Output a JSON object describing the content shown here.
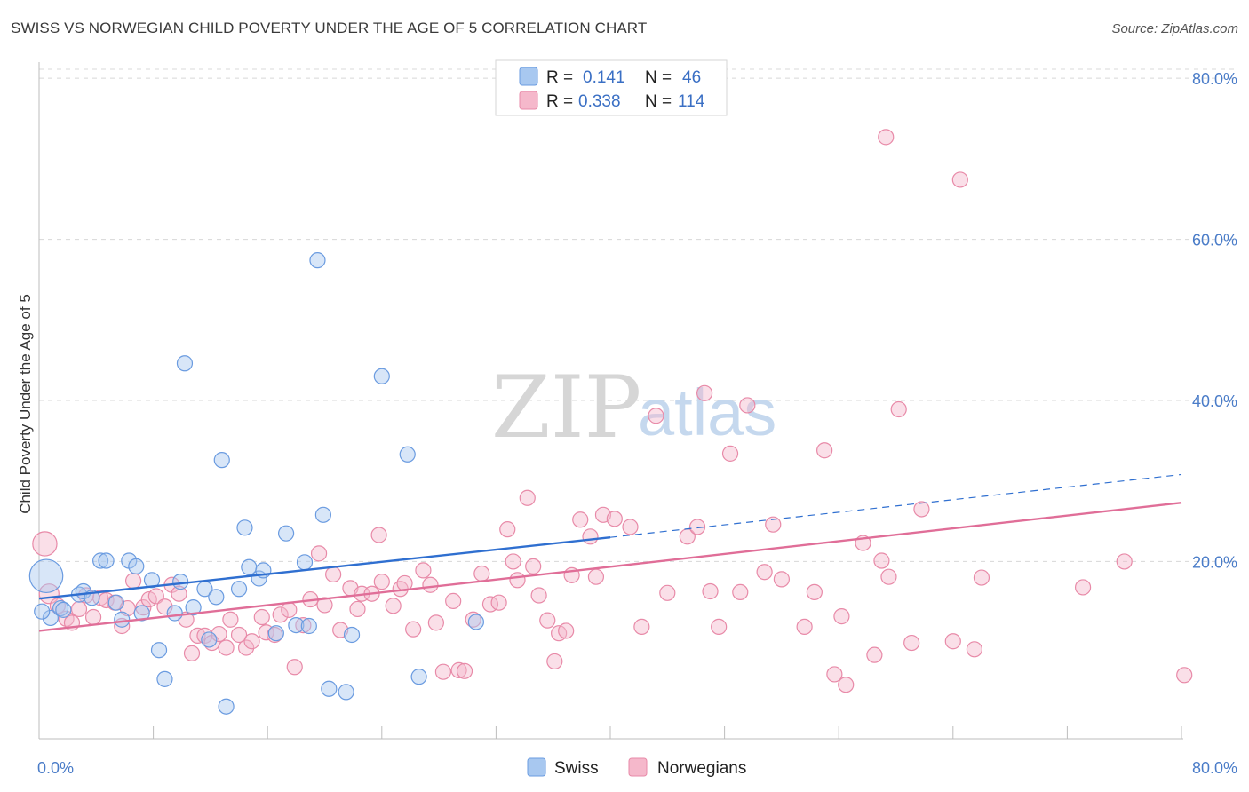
{
  "title": "SWISS VS NORWEGIAN CHILD POVERTY UNDER THE AGE OF 5 CORRELATION CHART",
  "source": "Source: ZipAtlas.com",
  "watermark": {
    "zip": "ZIP",
    "atlas": "atlas"
  },
  "colors": {
    "swiss_fill": "#a8c8f0",
    "swiss_stroke": "#6a9be0",
    "swiss_line": "#2f6fd0",
    "norw_fill": "#f5b8cb",
    "norw_stroke": "#e88aa8",
    "norw_line": "#e06e98",
    "tick_text": "#4a7cc8",
    "grid": "#d8d8d8"
  },
  "legend": {
    "swiss": {
      "r_label": "R =",
      "r_value": "0.141",
      "n_label": "N =",
      "n_value": "46"
    },
    "norwegians": {
      "r_label": "R =",
      "r_value": "0.338",
      "n_label": "N =",
      "n_value": "114"
    }
  },
  "chart_data": {
    "type": "scatter",
    "title": "SWISS VS NORWEGIAN CHILD POVERTY UNDER THE AGE OF 5 CORRELATION CHART",
    "xlabel": "",
    "ylabel": "Child Poverty Under the Age of 5",
    "xlim": [
      0,
      80
    ],
    "ylim": [
      -2,
      82
    ],
    "x_tick_labels": [
      {
        "value": 0,
        "label": "0.0%"
      },
      {
        "value": 80,
        "label": "80.0%"
      }
    ],
    "y_tick_labels": [
      {
        "value": 20,
        "label": "20.0%"
      },
      {
        "value": 40,
        "label": "40.0%"
      },
      {
        "value": 60,
        "label": "60.0%"
      },
      {
        "value": 80,
        "label": "80.0%"
      }
    ],
    "grid": true,
    "legend_position": "top-center",
    "series": [
      {
        "name": "Swiss",
        "r": 0.141,
        "n": 46,
        "trend": {
          "x0": 0,
          "y0": 15.4,
          "x1": 40,
          "y1": 23.0,
          "dashed_to_x": 80,
          "dashed_to_y": 30.8
        },
        "points": [
          [
            0.5,
            18.2,
            2.2
          ],
          [
            0.8,
            13.0,
            1
          ],
          [
            1.5,
            14.2,
            1
          ],
          [
            1.7,
            14.0,
            1
          ],
          [
            2.8,
            15.9,
            1
          ],
          [
            3.1,
            16.3,
            1
          ],
          [
            3.7,
            15.5,
            1
          ],
          [
            4.3,
            20.1,
            1
          ],
          [
            4.7,
            20.1,
            1
          ],
          [
            5.4,
            14.9,
            1
          ],
          [
            5.8,
            12.8,
            1
          ],
          [
            6.3,
            20.1,
            1
          ],
          [
            6.8,
            19.4,
            1
          ],
          [
            7.2,
            13.6,
            1
          ],
          [
            7.9,
            17.7,
            1
          ],
          [
            8.4,
            9.0,
            1
          ],
          [
            8.8,
            5.4,
            1
          ],
          [
            9.5,
            13.6,
            1
          ],
          [
            9.9,
            17.5,
            1
          ],
          [
            10.2,
            44.6,
            1
          ],
          [
            10.8,
            14.3,
            1
          ],
          [
            11.6,
            16.6,
            1
          ],
          [
            11.9,
            10.3,
            1
          ],
          [
            12.4,
            15.6,
            1
          ],
          [
            12.8,
            32.6,
            1
          ],
          [
            13.1,
            2.0,
            1
          ],
          [
            14.0,
            16.6,
            1
          ],
          [
            14.4,
            24.2,
            1
          ],
          [
            14.7,
            19.3,
            1
          ],
          [
            15.4,
            17.9,
            1
          ],
          [
            15.7,
            18.9,
            1
          ],
          [
            16.6,
            11.1,
            1
          ],
          [
            17.3,
            23.5,
            1
          ],
          [
            18.0,
            12.1,
            1
          ],
          [
            18.6,
            19.9,
            1
          ],
          [
            18.9,
            12.0,
            1
          ],
          [
            19.5,
            57.4,
            1
          ],
          [
            19.9,
            25.8,
            1
          ],
          [
            20.3,
            4.2,
            1
          ],
          [
            21.5,
            3.8,
            1
          ],
          [
            21.9,
            10.9,
            1
          ],
          [
            24.0,
            43.0,
            1
          ],
          [
            25.8,
            33.3,
            1
          ],
          [
            26.6,
            5.7,
            1
          ],
          [
            30.6,
            12.5,
            1
          ],
          [
            0.2,
            13.8,
            1
          ]
        ]
      },
      {
        "name": "Norwegians",
        "r": 0.338,
        "n": 114,
        "trend": {
          "x0": 0,
          "y0": 11.4,
          "x1": 80,
          "y1": 27.3
        },
        "points": [
          [
            0.4,
            22.2,
            1.6
          ],
          [
            0.7,
            16.0,
            1.3
          ],
          [
            1.3,
            14.5,
            1
          ],
          [
            1.9,
            12.9,
            1
          ],
          [
            2.3,
            12.4,
            1
          ],
          [
            2.8,
            14.1,
            1
          ],
          [
            3.3,
            15.8,
            1
          ],
          [
            3.8,
            13.1,
            1
          ],
          [
            4.3,
            15.5,
            1
          ],
          [
            4.7,
            15.2,
            1
          ],
          [
            5.3,
            14.9,
            1
          ],
          [
            5.8,
            12.0,
            1
          ],
          [
            6.2,
            14.2,
            1
          ],
          [
            6.6,
            17.6,
            1
          ],
          [
            7.3,
            14.3,
            1
          ],
          [
            7.7,
            15.3,
            1
          ],
          [
            8.2,
            15.7,
            1
          ],
          [
            8.8,
            14.4,
            1
          ],
          [
            9.3,
            17.1,
            1
          ],
          [
            9.8,
            16.0,
            1
          ],
          [
            10.3,
            12.8,
            1
          ],
          [
            10.7,
            8.6,
            1
          ],
          [
            11.1,
            10.8,
            1
          ],
          [
            11.6,
            10.8,
            1
          ],
          [
            12.1,
            9.9,
            1
          ],
          [
            12.6,
            11.0,
            1
          ],
          [
            13.1,
            9.3,
            1
          ],
          [
            13.4,
            12.8,
            1
          ],
          [
            14.0,
            10.9,
            1
          ],
          [
            14.5,
            9.3,
            1
          ],
          [
            14.9,
            10.1,
            1
          ],
          [
            15.6,
            13.1,
            1
          ],
          [
            15.9,
            11.2,
            1
          ],
          [
            16.5,
            10.9,
            1
          ],
          [
            16.9,
            13.4,
            1
          ],
          [
            17.5,
            14.0,
            1
          ],
          [
            17.9,
            6.9,
            1
          ],
          [
            18.5,
            12.1,
            1
          ],
          [
            19.0,
            15.3,
            1
          ],
          [
            19.6,
            21.0,
            1
          ],
          [
            20.0,
            14.6,
            1
          ],
          [
            20.6,
            18.4,
            1
          ],
          [
            21.1,
            11.5,
            1
          ],
          [
            21.8,
            16.7,
            1
          ],
          [
            22.3,
            14.1,
            1
          ],
          [
            22.6,
            16.0,
            1
          ],
          [
            23.3,
            16.0,
            1
          ],
          [
            23.8,
            23.3,
            1
          ],
          [
            24.0,
            17.5,
            1
          ],
          [
            24.8,
            14.5,
            1
          ],
          [
            25.3,
            16.6,
            1
          ],
          [
            25.6,
            17.3,
            1
          ],
          [
            26.2,
            11.6,
            1
          ],
          [
            26.9,
            18.9,
            1
          ],
          [
            27.4,
            17.1,
            1
          ],
          [
            27.8,
            12.4,
            1
          ],
          [
            28.3,
            6.3,
            1
          ],
          [
            29.0,
            15.1,
            1
          ],
          [
            29.4,
            6.5,
            1
          ],
          [
            29.8,
            6.4,
            1
          ],
          [
            30.4,
            12.8,
            1
          ],
          [
            31.0,
            18.5,
            1
          ],
          [
            31.6,
            14.7,
            1
          ],
          [
            32.2,
            14.9,
            1
          ],
          [
            32.8,
            24.0,
            1
          ],
          [
            33.2,
            20.0,
            1
          ],
          [
            33.5,
            17.7,
            1
          ],
          [
            34.2,
            27.9,
            1
          ],
          [
            34.6,
            19.4,
            1
          ],
          [
            35.0,
            15.8,
            1
          ],
          [
            35.6,
            12.7,
            1
          ],
          [
            36.1,
            7.6,
            1
          ],
          [
            36.4,
            11.1,
            1
          ],
          [
            36.9,
            11.4,
            1
          ],
          [
            37.3,
            18.3,
            1
          ],
          [
            37.9,
            25.2,
            1
          ],
          [
            38.6,
            23.1,
            1
          ],
          [
            39.0,
            18.1,
            1
          ],
          [
            39.5,
            25.8,
            1
          ],
          [
            40.3,
            25.3,
            1
          ],
          [
            41.4,
            24.3,
            1
          ],
          [
            42.2,
            11.9,
            1
          ],
          [
            43.2,
            38.1,
            1
          ],
          [
            44.0,
            16.1,
            1
          ],
          [
            45.4,
            23.1,
            1
          ],
          [
            46.1,
            24.3,
            1
          ],
          [
            46.6,
            40.9,
            1
          ],
          [
            47.0,
            16.3,
            1
          ],
          [
            47.6,
            11.9,
            1
          ],
          [
            48.4,
            33.4,
            1
          ],
          [
            49.1,
            16.2,
            1
          ],
          [
            49.6,
            39.4,
            1
          ],
          [
            50.8,
            18.7,
            1
          ],
          [
            51.4,
            24.6,
            1
          ],
          [
            52.0,
            17.8,
            1
          ],
          [
            53.6,
            11.9,
            1
          ],
          [
            54.3,
            16.2,
            1
          ],
          [
            55.0,
            33.8,
            1
          ],
          [
            56.2,
            13.2,
            1
          ],
          [
            57.7,
            22.3,
            1
          ],
          [
            58.5,
            8.4,
            1
          ],
          [
            59.0,
            20.1,
            1
          ],
          [
            59.5,
            18.1,
            1
          ],
          [
            60.2,
            38.9,
            1
          ],
          [
            61.1,
            9.9,
            1
          ],
          [
            61.8,
            26.5,
            1
          ],
          [
            64.0,
            10.1,
            1
          ],
          [
            65.5,
            9.1,
            1
          ],
          [
            66.0,
            18.0,
            1
          ],
          [
            73.1,
            16.8,
            1
          ],
          [
            76.0,
            20.0,
            1
          ],
          [
            80.2,
            5.9,
            1
          ],
          [
            56.5,
            4.7,
            1
          ],
          [
            55.7,
            6.0,
            1
          ],
          [
            59.3,
            72.7,
            1
          ],
          [
            64.5,
            67.4,
            1
          ]
        ]
      }
    ]
  }
}
